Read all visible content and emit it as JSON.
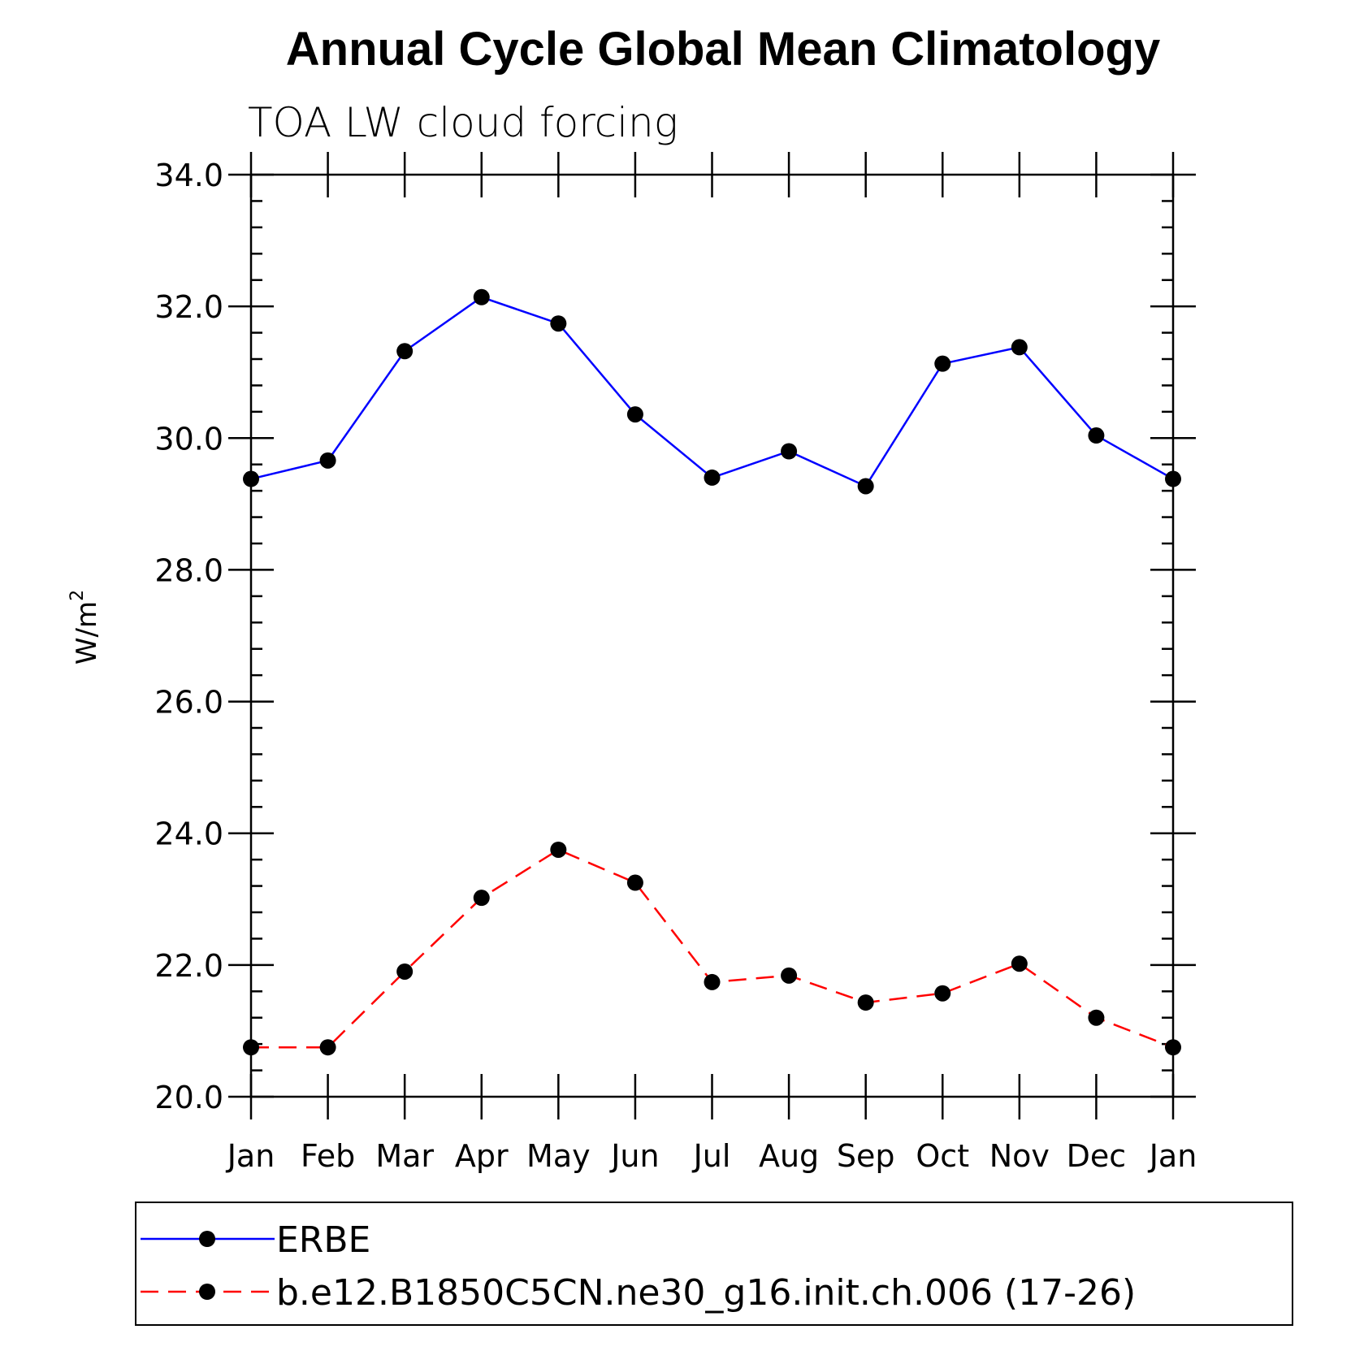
{
  "chart_data": {
    "type": "line",
    "title": "Annual Cycle Global Mean Climatology",
    "subtitle": "TOA LW cloud forcing",
    "ylabel": "W/m",
    "ylabel_superscript": "2",
    "categories": [
      "Jan",
      "Feb",
      "Mar",
      "Apr",
      "May",
      "Jun",
      "Jul",
      "Aug",
      "Sep",
      "Oct",
      "Nov",
      "Dec",
      "Jan"
    ],
    "ylim": [
      20.0,
      34.0
    ],
    "yticks": [
      "20.0",
      "22.0",
      "24.0",
      "26.0",
      "28.0",
      "30.0",
      "32.0",
      "34.0"
    ],
    "grid": false,
    "legend_placement": "bottom",
    "series": [
      {
        "name": "ERBE",
        "color": "#0000ff",
        "dash": "solid",
        "values": [
          29.38,
          29.66,
          31.32,
          32.14,
          31.74,
          30.36,
          29.4,
          29.8,
          29.27,
          31.13,
          31.38,
          30.04,
          29.38
        ]
      },
      {
        "name": "b.e12.B1850C5CN.ne30_g16.init.ch.006 (17-26)",
        "color": "#ff0000",
        "dash": "dashed",
        "values": [
          20.75,
          20.75,
          21.9,
          23.02,
          23.75,
          23.25,
          21.74,
          21.84,
          21.43,
          21.57,
          22.02,
          21.2,
          20.75
        ]
      }
    ]
  }
}
